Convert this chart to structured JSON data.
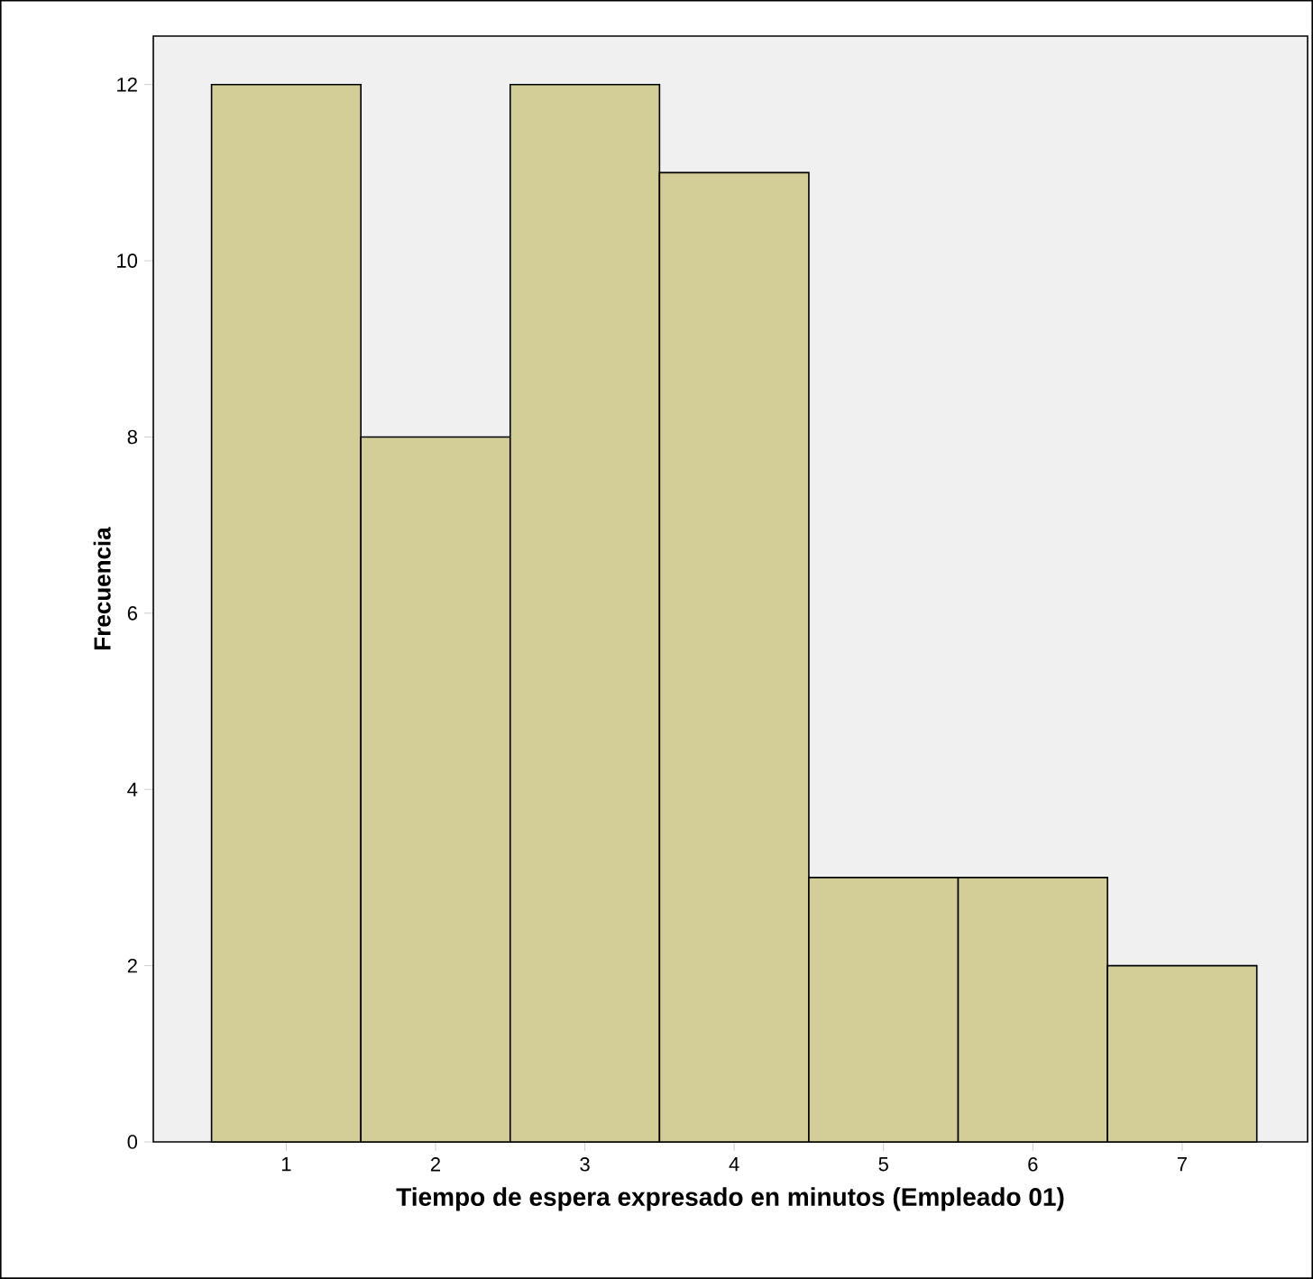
{
  "chart_data": {
    "type": "histogram",
    "xlabel": "Tiempo de espera expresado en minutos (Empleado 01)",
    "ylabel": "Frecuencia",
    "bins": [
      0.5,
      1.5,
      2.5,
      3.5,
      4.5,
      5.5,
      6.5,
      7.5
    ],
    "values": [
      12,
      8,
      12,
      11,
      3,
      3,
      2
    ],
    "color": "#d3ce97",
    "xlim": [
      0.11,
      7.84
    ],
    "ylim": [
      0,
      12.55
    ],
    "xticks": [
      1,
      2,
      3,
      4,
      5,
      6,
      7
    ],
    "yticks": [
      0,
      2,
      4,
      6,
      8,
      10,
      12
    ]
  }
}
